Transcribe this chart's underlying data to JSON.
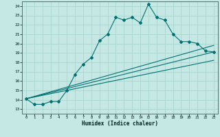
{
  "title": "",
  "xlabel": "Humidex (Indice chaleur)",
  "xlim": [
    -0.5,
    23.5
  ],
  "ylim": [
    12.5,
    24.5
  ],
  "yticks": [
    13,
    14,
    15,
    16,
    17,
    18,
    19,
    20,
    21,
    22,
    23,
    24
  ],
  "xticks": [
    0,
    1,
    2,
    3,
    4,
    5,
    6,
    7,
    8,
    9,
    10,
    11,
    12,
    13,
    14,
    15,
    16,
    17,
    18,
    19,
    20,
    21,
    22,
    23
  ],
  "bg_color": "#c5e8e5",
  "line_color": "#007070",
  "grid_color": "#a8d5d0",
  "line1_x": [
    0,
    1,
    2,
    3,
    4,
    5,
    6,
    7,
    8,
    9,
    10,
    11,
    12,
    13,
    14,
    15,
    16,
    17,
    18,
    19,
    20,
    21,
    22,
    23
  ],
  "line1_y": [
    14.1,
    13.5,
    13.5,
    13.8,
    13.8,
    15.0,
    16.7,
    17.8,
    18.5,
    20.3,
    21.0,
    22.8,
    22.5,
    22.8,
    22.2,
    24.2,
    22.8,
    22.5,
    21.0,
    20.2,
    20.2,
    20.0,
    19.2,
    19.1
  ],
  "line2_x": [
    0,
    23
  ],
  "line2_y": [
    14.1,
    19.1
  ],
  "line3_x": [
    0,
    23
  ],
  "line3_y": [
    14.1,
    18.2
  ],
  "line4_x": [
    0,
    23
  ],
  "line4_y": [
    14.1,
    19.8
  ]
}
